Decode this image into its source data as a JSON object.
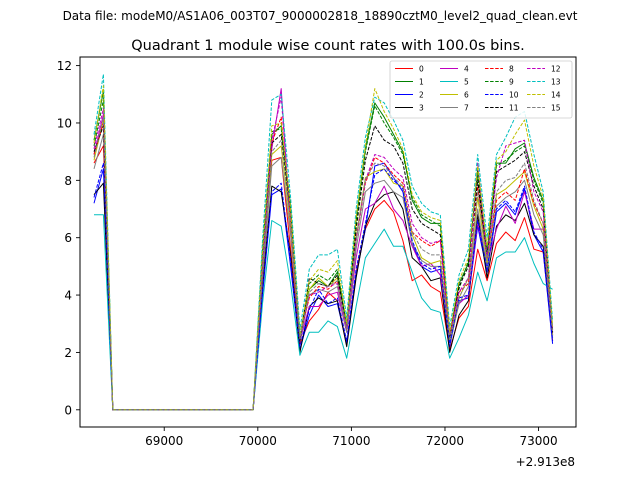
{
  "figure": {
    "suptitle": "Data file: modeM0/AS1A06_003T07_9000002818_18890cztM0_level2_quad_clean.evt"
  },
  "chart_data": {
    "type": "line",
    "title": "Quadrant 1 module wise count rates with 100.0s bins.",
    "xlabel": "",
    "ylabel": "",
    "x_offset_label": "+2.913e8",
    "xlim": [
      68100,
      73400
    ],
    "ylim": [
      -0.6,
      12.3
    ],
    "x_ticks": [
      69000,
      70000,
      71000,
      72000,
      73000
    ],
    "x_tick_labels": [
      "69000",
      "70000",
      "71000",
      "72000",
      "73000"
    ],
    "y_ticks": [
      0,
      2,
      4,
      6,
      8,
      10,
      12
    ],
    "y_tick_labels": [
      "0",
      "2",
      "4",
      "6",
      "8",
      "10",
      "12"
    ],
    "grid": false,
    "legend_position": "top-right",
    "legend_columns": 4,
    "x": [
      68250,
      68350,
      68450,
      68550,
      68650,
      68750,
      68850,
      68950,
      69050,
      69150,
      69250,
      69350,
      69450,
      69550,
      69650,
      69750,
      69850,
      69950,
      70050,
      70150,
      70250,
      70350,
      70450,
      70550,
      70650,
      70750,
      70850,
      70950,
      71050,
      71150,
      71250,
      71350,
      71450,
      71550,
      71650,
      71750,
      71850,
      71950,
      72050,
      72150,
      72250,
      72350,
      72450,
      72550,
      72650,
      72750,
      72850,
      72950,
      73050,
      73150
    ],
    "series": [
      {
        "name": "0",
        "color": "#ff0000",
        "dash": "solid",
        "values": [
          8.6,
          9.2,
          0,
          0,
          0,
          0,
          0,
          0,
          0,
          0,
          0,
          0,
          0,
          0,
          0,
          0,
          0,
          0,
          4.5,
          8.7,
          8.8,
          5.6,
          2.3,
          3.1,
          3.5,
          4.1,
          3.8,
          2.3,
          4.8,
          6.3,
          7.0,
          7.3,
          6.9,
          5.9,
          4.5,
          4.7,
          4.3,
          4.1,
          2.1,
          3.2,
          3.6,
          5.6,
          4.5,
          5.8,
          6.2,
          5.9,
          6.7,
          5.6,
          5.5,
          2.4
        ]
      },
      {
        "name": "1",
        "color": "#008000",
        "dash": "solid",
        "values": [
          9.4,
          11.1,
          0,
          0,
          0,
          0,
          0,
          0,
          0,
          0,
          0,
          0,
          0,
          0,
          0,
          0,
          0,
          0,
          5.6,
          9.6,
          9.9,
          7.1,
          2.5,
          4.2,
          4.5,
          4.3,
          4.8,
          2.9,
          6.6,
          9.1,
          10.7,
          10.2,
          9.6,
          9.0,
          7.3,
          6.7,
          6.5,
          6.5,
          2.6,
          4.4,
          5.1,
          8.4,
          5.5,
          8.6,
          8.6,
          9.1,
          9.3,
          8.1,
          7.3,
          2.8
        ]
      },
      {
        "name": "2",
        "color": "#0000ff",
        "dash": "solid",
        "values": [
          7.2,
          8.4,
          0,
          0,
          0,
          0,
          0,
          0,
          0,
          0,
          0,
          0,
          0,
          0,
          0,
          0,
          0,
          0,
          4.0,
          7.5,
          7.7,
          5.0,
          2.1,
          3.3,
          4.0,
          3.6,
          3.7,
          2.3,
          4.7,
          6.3,
          8.5,
          8.6,
          8.1,
          7.6,
          5.8,
          5.0,
          4.8,
          4.9,
          2.2,
          3.8,
          3.9,
          6.4,
          4.8,
          6.9,
          7.2,
          6.8,
          7.7,
          6.1,
          5.5,
          2.3
        ]
      },
      {
        "name": "3",
        "color": "#000000",
        "dash": "solid",
        "values": [
          7.5,
          7.9,
          0,
          0,
          0,
          0,
          0,
          0,
          0,
          0,
          0,
          0,
          0,
          0,
          0,
          0,
          0,
          0,
          4.3,
          7.8,
          7.6,
          5.4,
          2.0,
          3.6,
          3.9,
          3.7,
          3.8,
          2.2,
          4.6,
          6.4,
          7.2,
          7.5,
          7.6,
          7.0,
          5.3,
          5.0,
          4.5,
          4.6,
          2.0,
          3.3,
          3.8,
          6.8,
          4.6,
          6.4,
          6.8,
          6.6,
          7.2,
          6.1,
          5.7,
          2.6
        ]
      },
      {
        "name": "4",
        "color": "#bf00bf",
        "dash": "solid",
        "values": [
          8.9,
          10.3,
          0,
          0,
          0,
          0,
          0,
          0,
          0,
          0,
          0,
          0,
          0,
          0,
          0,
          0,
          0,
          0,
          4.8,
          9.1,
          11.2,
          6.2,
          2.4,
          3.6,
          3.6,
          4.0,
          4.1,
          2.7,
          5.3,
          7.0,
          7.2,
          7.8,
          7.0,
          6.6,
          5.7,
          5.0,
          5.1,
          4.7,
          2.5,
          3.7,
          4.0,
          6.5,
          5.1,
          6.3,
          7.1,
          6.5,
          7.6,
          6.3,
          6.3,
          2.6
        ]
      },
      {
        "name": "5",
        "color": "#00bfbf",
        "dash": "solid",
        "values": [
          6.8,
          6.8,
          0,
          0,
          0,
          0,
          0,
          0,
          0,
          0,
          0,
          0,
          0,
          0,
          0,
          0,
          0,
          0,
          3.7,
          6.6,
          6.4,
          4.4,
          1.9,
          2.7,
          2.7,
          3.1,
          2.9,
          1.8,
          3.6,
          5.3,
          5.8,
          6.3,
          5.7,
          5.7,
          4.8,
          3.9,
          3.5,
          3.4,
          1.8,
          2.5,
          3.3,
          4.8,
          3.8,
          5.3,
          5.5,
          5.5,
          6.0,
          5.1,
          4.4,
          4.2
        ]
      },
      {
        "name": "6",
        "color": "#bfbf00",
        "dash": "solid",
        "values": [
          8.7,
          10.1,
          0,
          0,
          0,
          0,
          0,
          0,
          0,
          0,
          0,
          0,
          0,
          0,
          0,
          0,
          0,
          0,
          4.8,
          8.9,
          9.2,
          6.4,
          2.5,
          4.2,
          4.6,
          4.3,
          4.6,
          2.8,
          6.0,
          8.1,
          8.3,
          8.4,
          7.9,
          7.8,
          6.1,
          5.3,
          5.1,
          5.2,
          2.4,
          3.9,
          4.6,
          7.4,
          5.1,
          7.5,
          7.7,
          8.0,
          8.3,
          7.1,
          6.3,
          2.6
        ]
      },
      {
        "name": "7",
        "color": "#808080",
        "dash": "solid",
        "values": [
          8.4,
          9.6,
          0,
          0,
          0,
          0,
          0,
          0,
          0,
          0,
          0,
          0,
          0,
          0,
          0,
          0,
          0,
          0,
          4.6,
          8.5,
          8.8,
          6.1,
          2.4,
          4.0,
          4.2,
          4.1,
          4.3,
          2.7,
          5.6,
          7.6,
          7.9,
          8.0,
          7.6,
          7.4,
          5.8,
          5.2,
          5.0,
          5.0,
          2.3,
          3.7,
          4.3,
          7.0,
          4.9,
          7.1,
          7.4,
          7.6,
          8.0,
          6.8,
          6.1,
          2.5
        ]
      },
      {
        "name": "8",
        "color": "#ff0000",
        "dash": "dashed",
        "values": [
          8.9,
          10.0,
          0,
          0,
          0,
          0,
          0,
          0,
          0,
          0,
          0,
          0,
          0,
          0,
          0,
          0,
          0,
          0,
          4.9,
          9.3,
          10.2,
          6.5,
          2.6,
          3.9,
          4.3,
          4.2,
          4.5,
          2.8,
          5.9,
          7.9,
          8.8,
          8.6,
          8.2,
          7.9,
          6.2,
          5.9,
          5.7,
          5.9,
          2.6,
          4.1,
          4.4,
          7.8,
          5.3,
          7.3,
          7.6,
          7.3,
          8.4,
          7.2,
          6.5,
          2.7
        ]
      },
      {
        "name": "9",
        "color": "#008000",
        "dash": "dashed",
        "values": [
          9.2,
          10.8,
          0,
          0,
          0,
          0,
          0,
          0,
          0,
          0,
          0,
          0,
          0,
          0,
          0,
          0,
          0,
          0,
          5.3,
          9.7,
          9.8,
          6.9,
          2.5,
          4.4,
          4.7,
          4.5,
          4.9,
          2.9,
          6.5,
          9.0,
          10.6,
          10.0,
          9.5,
          8.9,
          7.4,
          6.8,
          6.6,
          6.4,
          2.6,
          4.2,
          5.2,
          8.2,
          5.4,
          8.5,
          8.7,
          9.0,
          9.2,
          8.0,
          7.2,
          2.8
        ]
      },
      {
        "name": "10",
        "color": "#0000ff",
        "dash": "dashed",
        "values": [
          7.4,
          8.6,
          0,
          0,
          0,
          0,
          0,
          0,
          0,
          0,
          0,
          0,
          0,
          0,
          0,
          0,
          0,
          0,
          4.1,
          7.6,
          7.9,
          5.2,
          2.2,
          3.5,
          4.2,
          3.7,
          3.9,
          2.4,
          4.9,
          6.5,
          8.2,
          8.4,
          8.0,
          7.7,
          5.9,
          5.1,
          4.9,
          5.0,
          2.3,
          3.9,
          4.0,
          6.6,
          4.9,
          7.0,
          7.3,
          6.9,
          7.8,
          6.2,
          5.6,
          2.4
        ]
      },
      {
        "name": "11",
        "color": "#000000",
        "dash": "dashed",
        "values": [
          9.0,
          9.9,
          0,
          0,
          0,
          0,
          0,
          0,
          0,
          0,
          0,
          0,
          0,
          0,
          0,
          0,
          0,
          0,
          5.1,
          9.3,
          9.6,
          6.7,
          2.4,
          4.6,
          4.4,
          4.3,
          4.7,
          2.8,
          6.3,
          8.7,
          9.9,
          9.4,
          9.2,
          8.6,
          7.0,
          6.5,
          6.3,
          6.1,
          2.5,
          4.3,
          5.0,
          8.0,
          5.3,
          8.3,
          8.5,
          8.7,
          9.0,
          7.8,
          7.0,
          2.7
        ]
      },
      {
        "name": "12",
        "color": "#bf00bf",
        "dash": "dashed",
        "values": [
          9.1,
          10.5,
          0,
          0,
          0,
          0,
          0,
          0,
          0,
          0,
          0,
          0,
          0,
          0,
          0,
          0,
          0,
          0,
          5.0,
          9.4,
          10.9,
          6.6,
          2.5,
          4.0,
          4.1,
          4.3,
          4.4,
          2.8,
          5.9,
          8.0,
          8.9,
          8.8,
          8.4,
          8.1,
          6.5,
          6.0,
          5.8,
          5.9,
          2.6,
          4.1,
          4.6,
          8.6,
          5.3,
          8.1,
          9.2,
          9.3,
          9.4,
          7.6,
          6.9,
          2.8
        ]
      },
      {
        "name": "13",
        "color": "#00bfbf",
        "dash": "dashed",
        "values": [
          9.6,
          11.7,
          0,
          0,
          0,
          0,
          0,
          0,
          0,
          0,
          0,
          0,
          0,
          0,
          0,
          0,
          0,
          0,
          5.9,
          10.8,
          11.0,
          7.4,
          2.8,
          4.9,
          5.4,
          5.4,
          5.6,
          3.2,
          7.0,
          9.5,
          10.9,
          10.7,
          10.1,
          9.4,
          7.8,
          7.2,
          6.9,
          6.8,
          2.9,
          4.7,
          5.6,
          8.9,
          6.0,
          8.9,
          9.5,
          10.2,
          10.4,
          8.9,
          7.6,
          3.1
        ]
      },
      {
        "name": "14",
        "color": "#bfbf00",
        "dash": "dashed",
        "values": [
          9.3,
          11.3,
          0,
          0,
          0,
          0,
          0,
          0,
          0,
          0,
          0,
          0,
          0,
          0,
          0,
          0,
          0,
          0,
          5.5,
          9.9,
          10.0,
          7.0,
          2.6,
          4.5,
          4.9,
          4.8,
          5.2,
          3.0,
          6.7,
          9.2,
          11.2,
          10.4,
          9.8,
          9.1,
          7.5,
          6.9,
          6.7,
          6.6,
          2.7,
          4.5,
          5.3,
          8.5,
          5.7,
          8.7,
          9.0,
          9.6,
          10.1,
          8.5,
          7.4,
          2.9
        ]
      },
      {
        "name": "15",
        "color": "#808080",
        "dash": "dashed",
        "values": [
          8.8,
          10.2,
          0,
          0,
          0,
          0,
          0,
          0,
          0,
          0,
          0,
          0,
          0,
          0,
          0,
          0,
          0,
          0,
          4.9,
          9.0,
          9.4,
          6.5,
          2.5,
          4.1,
          4.4,
          4.3,
          4.5,
          2.8,
          5.9,
          8.0,
          8.6,
          8.5,
          8.1,
          7.8,
          6.2,
          5.6,
          5.4,
          5.4,
          2.5,
          3.9,
          4.6,
          7.6,
          5.2,
          7.6,
          8.0,
          8.1,
          8.6,
          7.3,
          6.5,
          2.7
        ]
      }
    ]
  }
}
